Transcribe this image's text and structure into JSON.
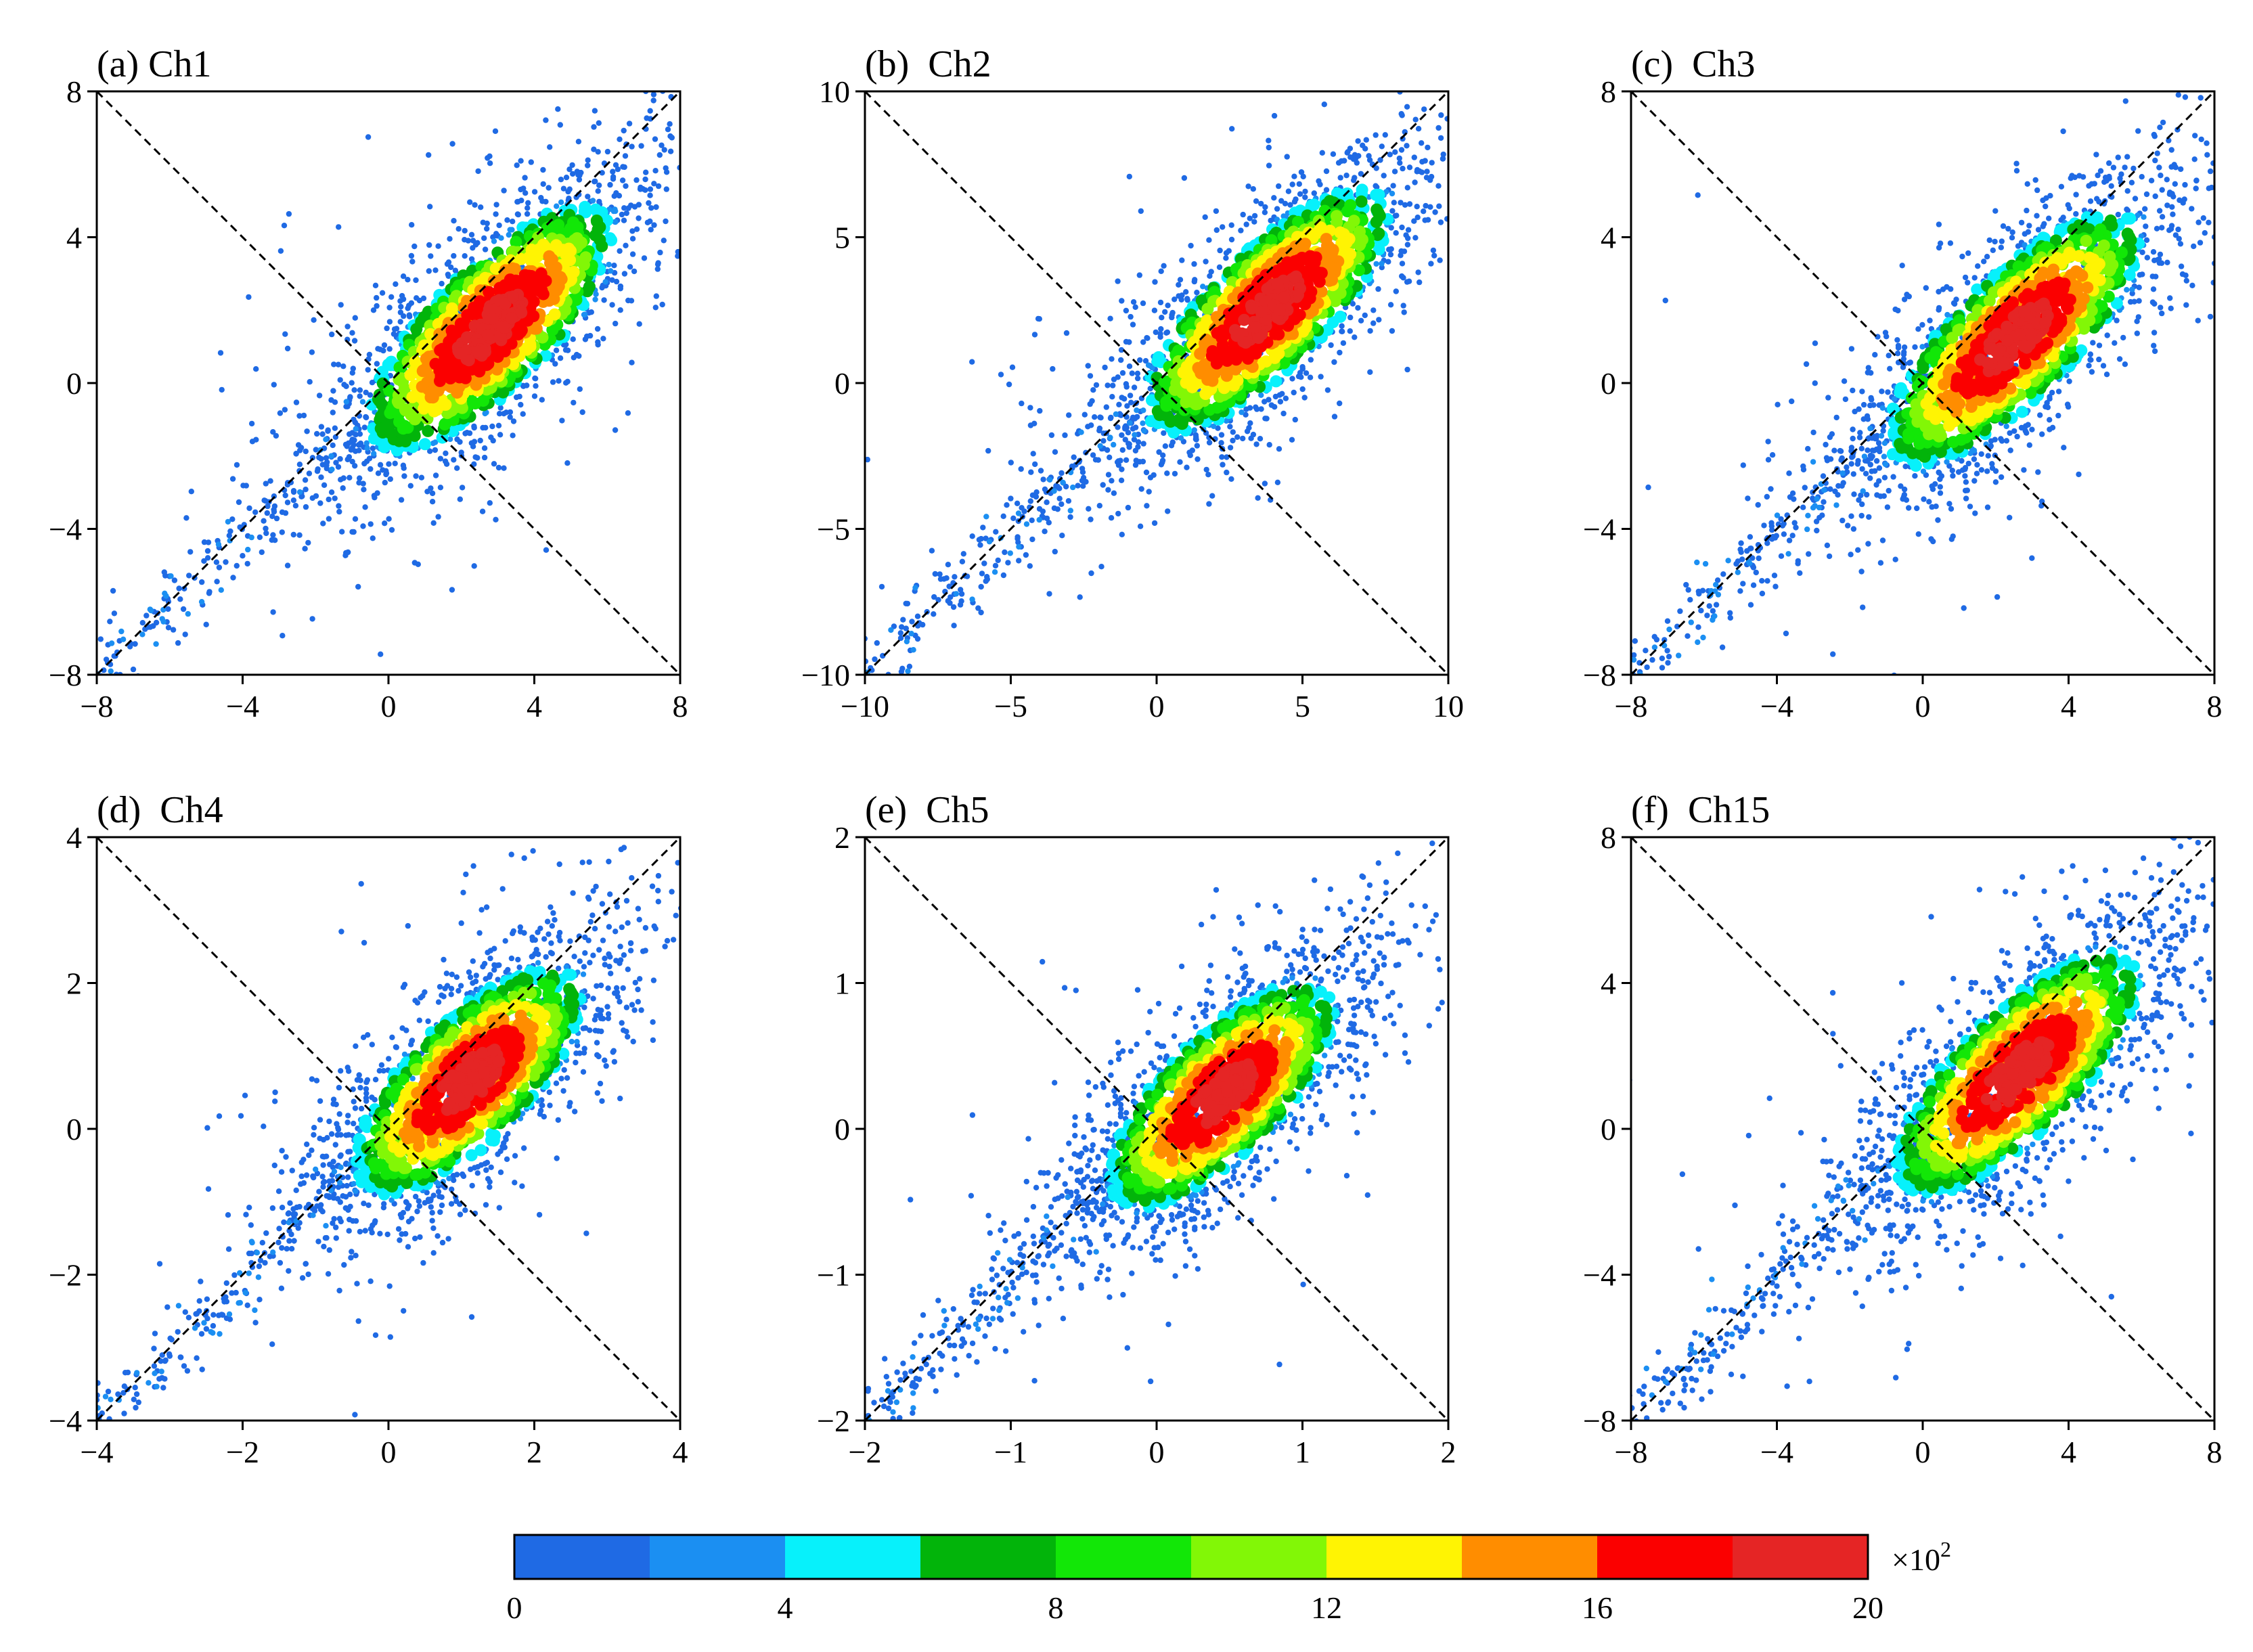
{
  "figure": {
    "colorbar": {
      "ticks": [
        "0",
        "4",
        "8",
        "12",
        "16",
        "20"
      ],
      "range": [
        0,
        20
      ],
      "multiplier_base": "×10",
      "multiplier_exp": "2",
      "colors": [
        "#1f6ae4",
        "#1b8ff2",
        "#07f1fb",
        "#02b40a",
        "#12e707",
        "#82f706",
        "#fff403",
        "#ff8d00",
        "#fb0000",
        "#e52525"
      ]
    }
  },
  "chart_data": [
    {
      "type": "scatter",
      "title": "(a) Ch1",
      "xlim": [
        -8,
        8
      ],
      "ylim": [
        -8,
        8
      ],
      "xticks": [
        -8,
        -4,
        0,
        4,
        8
      ],
      "yticks": [
        -8,
        -4,
        0,
        4,
        8
      ],
      "xtick_labels": [
        "−8",
        "−4",
        "0",
        "4",
        "8"
      ],
      "ytick_labels": [
        "−8",
        "−4",
        "0",
        "4",
        "8"
      ],
      "density_center": [
        2.8,
        1.6
      ],
      "density_spread": [
        2.4,
        0.9
      ],
      "reference_lines": [
        "y = x",
        "y = -x"
      ]
    },
    {
      "type": "scatter",
      "title": "(b)  Ch2",
      "xlim": [
        -10,
        10
      ],
      "ylim": [
        -10,
        10
      ],
      "xticks": [
        -10,
        -5,
        0,
        5,
        10
      ],
      "yticks": [
        -10,
        -5,
        0,
        5,
        10
      ],
      "xtick_labels": [
        "−10",
        "−5",
        "0",
        "5",
        "10"
      ],
      "ytick_labels": [
        "−10",
        "−5",
        "0",
        "5",
        "10"
      ],
      "density_center": [
        3.8,
        2.6
      ],
      "density_spread": [
        3.0,
        1.1
      ],
      "reference_lines": [
        "y = x",
        "y = -x"
      ]
    },
    {
      "type": "scatter",
      "title": "(c)  Ch3",
      "xlim": [
        -8,
        8
      ],
      "ylim": [
        -8,
        8
      ],
      "xticks": [
        -8,
        -4,
        0,
        4,
        8
      ],
      "yticks": [
        -8,
        -4,
        0,
        4,
        8
      ],
      "xtick_labels": [
        "−8",
        "−4",
        "0",
        "4",
        "8"
      ],
      "ytick_labels": [
        "−8",
        "−4",
        "0",
        "4",
        "8"
      ],
      "density_center": [
        2.5,
        1.3
      ],
      "density_spread": [
        2.5,
        0.9
      ],
      "reference_lines": [
        "y = x",
        "y = -x"
      ]
    },
    {
      "type": "scatter",
      "title": "(d)  Ch4",
      "xlim": [
        -4,
        4
      ],
      "ylim": [
        -4,
        4
      ],
      "xticks": [
        -4,
        -2,
        0,
        2,
        4
      ],
      "yticks": [
        -4,
        -2,
        0,
        2,
        4
      ],
      "xtick_labels": [
        "−4",
        "−2",
        "0",
        "2",
        "4"
      ],
      "ytick_labels": [
        "−4",
        "−2",
        "0",
        "2",
        "4"
      ],
      "density_center": [
        1.1,
        0.7
      ],
      "density_spread": [
        1.1,
        0.45
      ],
      "reference_lines": [
        "y = x",
        "y = -x"
      ]
    },
    {
      "type": "scatter",
      "title": "(e)  Ch5",
      "xlim": [
        -2,
        2
      ],
      "ylim": [
        -2,
        2
      ],
      "xticks": [
        -2,
        -1,
        0,
        1,
        2
      ],
      "yticks": [
        -2,
        -1,
        0,
        1,
        2
      ],
      "xtick_labels": [
        "−2",
        "−1",
        "0",
        "1",
        "2"
      ],
      "ytick_labels": [
        "−2",
        "−1",
        "0",
        "1",
        "2"
      ],
      "density_center": [
        0.45,
        0.25
      ],
      "density_spread": [
        0.55,
        0.22
      ],
      "reference_lines": [
        "y = x",
        "y = -x"
      ]
    },
    {
      "type": "scatter",
      "title": "(f)  Ch15",
      "xlim": [
        -8,
        8
      ],
      "ylim": [
        -8,
        8
      ],
      "xticks": [
        -8,
        -4,
        0,
        4,
        8
      ],
      "yticks": [
        -8,
        -4,
        0,
        4,
        8
      ],
      "xtick_labels": [
        "−8",
        "−4",
        "0",
        "4",
        "8"
      ],
      "ytick_labels": [
        "−8",
        "−4",
        "0",
        "4",
        "8"
      ],
      "density_center": [
        2.6,
        1.6
      ],
      "density_spread": [
        2.4,
        0.9
      ],
      "reference_lines": [
        "y = x",
        "y = -x"
      ]
    }
  ]
}
